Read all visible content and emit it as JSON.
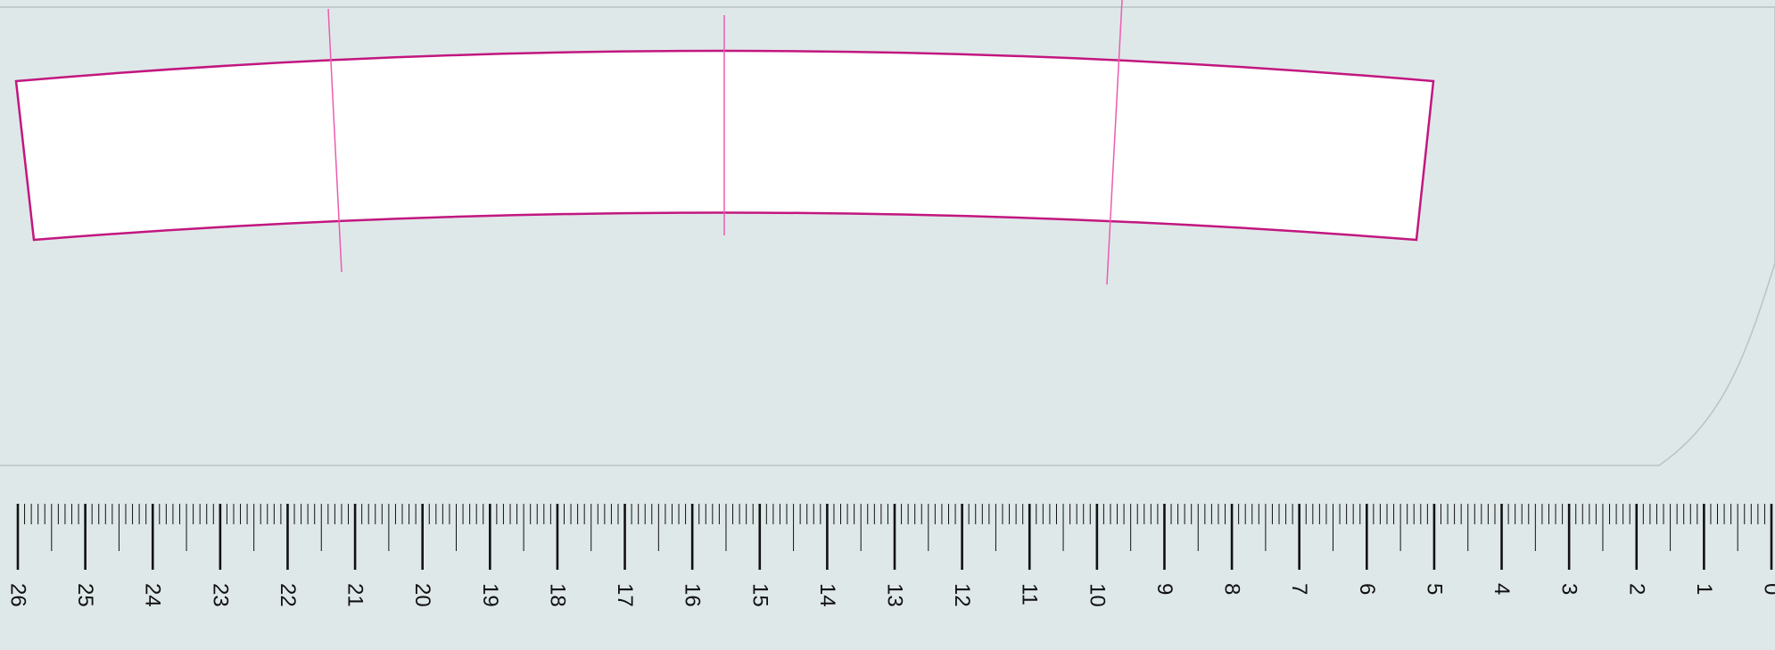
{
  "canvas": {
    "background_color": "#dfe8e9",
    "board_outline_color": "#b9c3c6",
    "shape_fill": "#ffffff"
  },
  "pattern_piece": {
    "outline_color": "#c2177f",
    "guide_line_color": "#ec5cb0",
    "guide_line_count": 3
  },
  "ruler": {
    "unit": "cm",
    "start_value": 0,
    "end_value": 26,
    "direction": "right-to-left",
    "minor_ticks_per_unit": 10,
    "tick_color": "#111111",
    "labels": [
      "0",
      "1",
      "2",
      "3",
      "4",
      "5",
      "6",
      "7",
      "8",
      "9",
      "10",
      "11",
      "12",
      "13",
      "14",
      "15",
      "16",
      "17",
      "18",
      "19",
      "20",
      "21",
      "22",
      "23",
      "24",
      "25",
      "26"
    ]
  }
}
